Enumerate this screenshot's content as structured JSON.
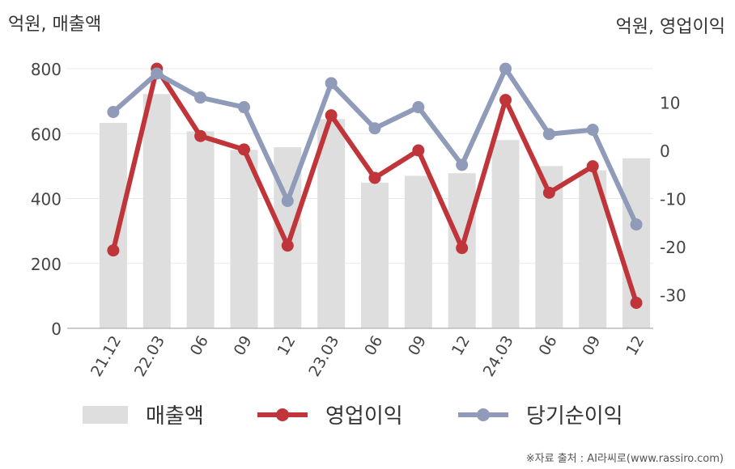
{
  "chart_data": {
    "type": "bar",
    "left_unit_label": "억원, 매출액",
    "right_unit_label": "억원, 영업이익",
    "categories": [
      "21.12",
      "22.03",
      "06",
      "09",
      "12",
      "23.03",
      "06",
      "09",
      "12",
      "24.03",
      "06",
      "09",
      "12"
    ],
    "left_axis": {
      "min": 0,
      "max": 800,
      "ticks": [
        0,
        200,
        400,
        600,
        800
      ]
    },
    "right_axis": {
      "min": -37,
      "max": 17,
      "ticks": [
        -30,
        -20,
        -10,
        0,
        10
      ]
    },
    "grid": true,
    "legend_position": "bottom",
    "series": [
      {
        "name": "매출액",
        "type": "bar",
        "axis": "left",
        "color": "#dedede",
        "values": [
          633,
          722,
          607,
          550,
          558,
          645,
          449,
          470,
          478,
          580,
          500,
          487,
          524
        ]
      },
      {
        "name": "영업이익",
        "type": "line",
        "axis": "right",
        "color": "#c0353a",
        "values": [
          -20.8,
          17.0,
          3.0,
          0.2,
          -19.8,
          7.3,
          -5.7,
          0.0,
          -20.3,
          10.5,
          -8.8,
          -3.3,
          -31.7
        ]
      },
      {
        "name": "당기순이익",
        "type": "line",
        "axis": "right",
        "color": "#8f9bb8",
        "values": [
          8.0,
          16.0,
          11.0,
          9.0,
          -10.5,
          14.0,
          4.6,
          9.0,
          -3.0,
          17.0,
          3.4,
          4.3,
          -15.4
        ]
      }
    ],
    "source": "※자료 출처 : AI라씨로(www.rassiro.com)"
  }
}
